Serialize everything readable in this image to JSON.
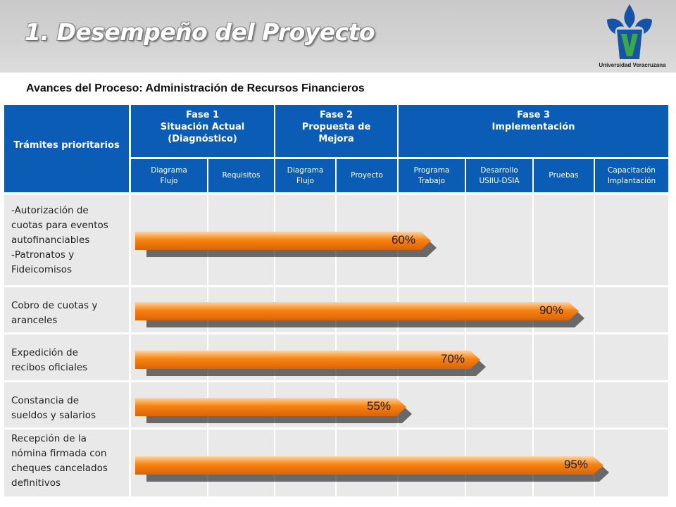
{
  "header": {
    "title": "1. Desempeño del Proyecto",
    "institution": "Universidad Veracruzana",
    "subtitle": "Avances del Proceso:  Administración de Recursos Financieros"
  },
  "colors": {
    "header_blue": "#0a5cb5",
    "bar_orange": "#f7830f",
    "grid_gray": "#e9e9e9"
  },
  "table": {
    "row_header": "Trámites prioritarios",
    "phases": [
      {
        "lines": [
          "Fase 1",
          "Situación Actual",
          "(Diagnóstico)"
        ]
      },
      {
        "lines": [
          "Fase 2",
          "Propuesta de",
          "Mejora"
        ]
      },
      {
        "lines": [
          "Fase 3",
          "Implementación"
        ]
      }
    ],
    "subcolumns": [
      [
        "Diagrama",
        "Flujo"
      ],
      [
        "Requisitos"
      ],
      [
        "Diagrama",
        "Flujo"
      ],
      [
        "Proyecto"
      ],
      [
        "Programa",
        "Trabajo"
      ],
      [
        "Desarrollo",
        "USIIU-DSIA"
      ],
      [
        "Pruebas"
      ],
      [
        "Capacitación",
        "Implantación"
      ]
    ]
  },
  "chart_data": {
    "type": "bar",
    "orientation": "horizontal",
    "categories": [
      [
        "-Autorización de",
        "cuotas para eventos",
        "autofinanciables",
        "-Patronatos y",
        "Fideicomisos"
      ],
      [
        "Cobro de cuotas y",
        "aranceles"
      ],
      [
        "Expedición de",
        "recibos oficiales"
      ],
      [
        "Constancia de",
        "sueldos y salarios"
      ],
      [
        "Recepción de la",
        "nómina firmada con",
        "cheques cancelados",
        "definitivos"
      ]
    ],
    "values": [
      60,
      90,
      70,
      55,
      95
    ],
    "labels": [
      "60%",
      "90%",
      "70%",
      "55%",
      "95%"
    ]
  }
}
